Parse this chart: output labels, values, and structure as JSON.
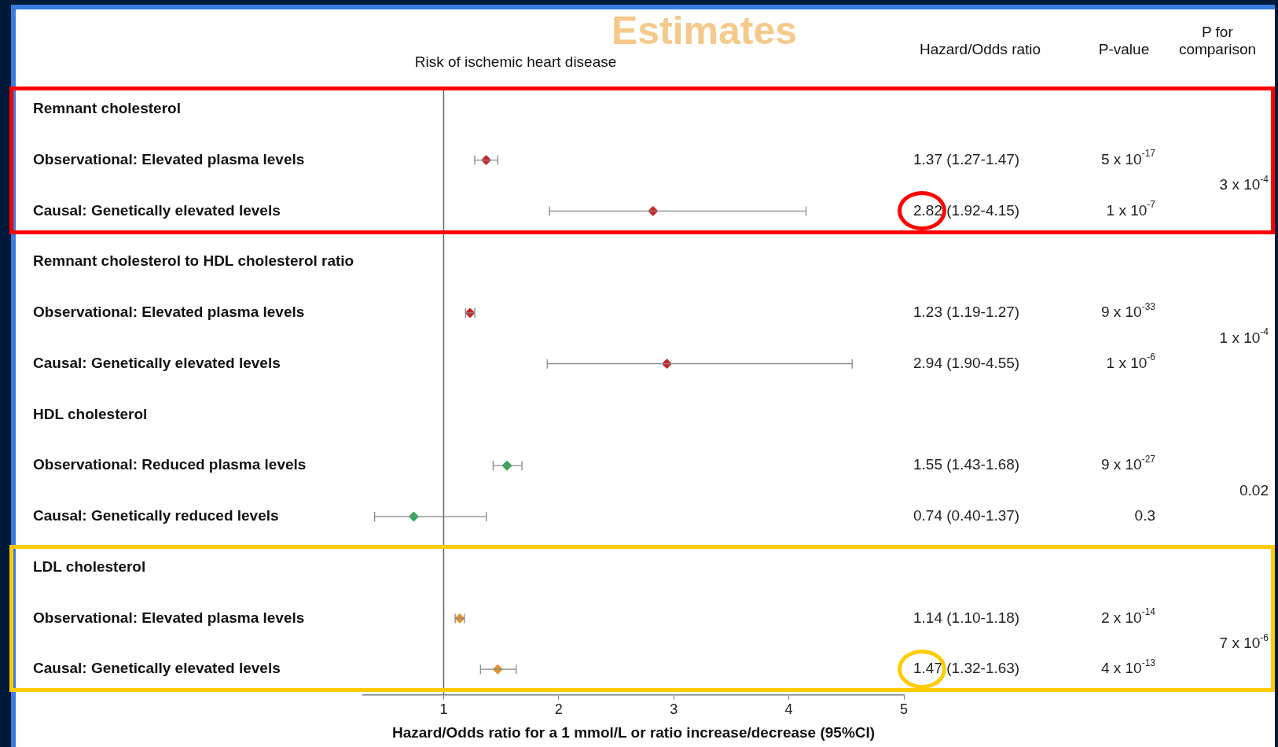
{
  "chart_data": {
    "type": "scatter",
    "orientation": "horizontal",
    "title": "Estimates",
    "subtitle": "Risk of ischemic heart disease",
    "xlabel": "Hazard/Odds ratio for a 1 mmol/L or ratio increase/decrease (95%CI)",
    "categories": [
      "Remnant cholesterol",
      "Observational: Elevated plasma levels",
      "Causal: Genetically elevated levels",
      "Remnant cholesterol to HDL cholesterol ratio",
      "Observational: Elevated plasma levels",
      "Causal: Genetically elevated levels",
      "HDL cholesterol",
      "Observational: Reduced plasma levels",
      "Causal: Genetically reduced levels",
      "LDL cholesterol",
      "Observational: Elevated plasma levels",
      "Causal: Genetically elevated levels"
    ],
    "values": [
      null,
      1.37,
      2.82,
      null,
      1.23,
      2.94,
      null,
      1.55,
      0.74,
      null,
      1.14,
      1.47
    ],
    "errors": [
      null,
      [
        1.27,
        1.47
      ],
      [
        1.92,
        4.15
      ],
      null,
      [
        1.19,
        1.27
      ],
      [
        1.9,
        4.55
      ],
      null,
      [
        1.43,
        1.68
      ],
      [
        0.4,
        1.37
      ],
      null,
      [
        1.1,
        1.18
      ],
      [
        1.32,
        1.63
      ]
    ],
    "value_labels": [
      null,
      "1.37 (1.27-1.47)",
      "2.82 (1.92-4.15)",
      null,
      "1.23 (1.19-1.27)",
      "2.94 (1.90-4.55)",
      null,
      "1.55 (1.43-1.68)",
      "0.74 (0.40-1.37)",
      null,
      "1.14 (1.10-1.18)",
      "1.47 (1.32-1.63)"
    ],
    "colors": [
      null,
      "#c62828",
      "#c62828",
      null,
      "#c62828",
      "#c62828",
      null,
      "#2eaa55",
      "#2eaa55",
      null,
      "#e6912e",
      "#e6912e"
    ],
    "xlim": [
      0.3,
      5
    ],
    "xticks": [
      1,
      2,
      3,
      4,
      5
    ],
    "marker": "diamond",
    "grid": false,
    "legend": false,
    "ref_lines": [
      {
        "axis": "x",
        "value": 1,
        "color": "#666666"
      }
    ],
    "annotations": [
      "Hazard/Odds ratio",
      "P-value",
      "P for comparison",
      "5 x 10$^{-17}$",
      "1 x 10$^{-7}$",
      "9 x 10$^{-33}$",
      "1 x 10$^{-6}$",
      "9 x 10$^{-27}$",
      "0.3",
      "2 x 10$^{-14}$",
      "4 x 10$^{-13}$",
      "3 x 10$^{-4}$",
      "1 x 10$^{-4}$",
      "0.02",
      "7 x 10$^{-6}$"
    ]
  }
}
